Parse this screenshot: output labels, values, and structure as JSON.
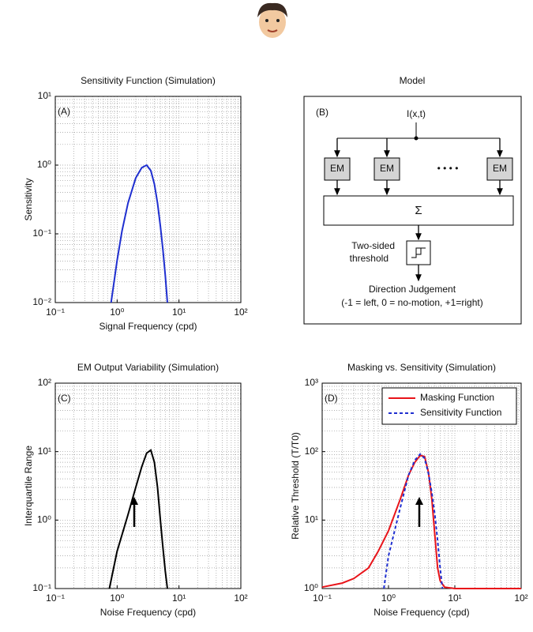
{
  "chart_data": [
    {
      "type": "line",
      "title": "Sensitivity Function (Simulation)",
      "panel_label": "(A)",
      "xlabel": "Signal Frequency (cpd)",
      "ylabel": "Sensitivity",
      "xlog": true,
      "ylog": true,
      "grid": true,
      "xlim": [
        0.1,
        100
      ],
      "ylim": [
        0.01,
        10
      ],
      "xticks": [
        {
          "value": 0.1,
          "label": "10⁻¹"
        },
        {
          "value": 1,
          "label": "10⁰"
        },
        {
          "value": 10,
          "label": "10¹"
        },
        {
          "value": 100,
          "label": "10²"
        }
      ],
      "yticks": [
        {
          "value": 0.01,
          "label": "10⁻²"
        },
        {
          "value": 0.1,
          "label": "10⁻¹"
        },
        {
          "value": 1,
          "label": "10⁰"
        },
        {
          "value": 10,
          "label": "10¹"
        }
      ],
      "series": [
        {
          "color": "#1f2fd0",
          "x": [
            0.8,
            1,
            1.2,
            1.5,
            2,
            2.5,
            3,
            3.5,
            4,
            4.5,
            5,
            5.5,
            6,
            6.5
          ],
          "values": [
            0.01,
            0.041,
            0.11,
            0.28,
            0.65,
            0.92,
            1.0,
            0.83,
            0.53,
            0.28,
            0.13,
            0.059,
            0.025,
            0.01
          ]
        }
      ]
    },
    {
      "type": "line",
      "title": "EM Output Variability (Simulation)",
      "panel_label": "(C)",
      "xlabel": "Noise Frequency (cpd)",
      "ylabel": "Interquartile Range",
      "xlog": true,
      "ylog": true,
      "grid": true,
      "xlim": [
        0.1,
        100
      ],
      "ylim": [
        0.1,
        100
      ],
      "xticks": [
        {
          "value": 0.1,
          "label": "10⁻¹"
        },
        {
          "value": 1,
          "label": "10⁰"
        },
        {
          "value": 10,
          "label": "10¹"
        },
        {
          "value": 100,
          "label": "10²"
        }
      ],
      "yticks": [
        {
          "value": 0.1,
          "label": "10⁻¹"
        },
        {
          "value": 1,
          "label": "10⁰"
        },
        {
          "value": 10,
          "label": "10¹"
        },
        {
          "value": 100,
          "label": "10²"
        }
      ],
      "series": [
        {
          "color": "#000000",
          "x": [
            0.75,
            1,
            1.5,
            2,
            2.5,
            3,
            3.5,
            4,
            4.5,
            5,
            5.5,
            6,
            6.5
          ],
          "values": [
            0.1,
            0.35,
            1.2,
            3,
            6,
            9.5,
            10.5,
            7,
            3,
            1,
            0.4,
            0.18,
            0.1
          ]
        }
      ]
    },
    {
      "type": "line",
      "title": "Masking vs. Sensitivity (Simulation)",
      "panel_label": "(D)",
      "xlabel": "Noise Frequency (cpd)",
      "ylabel": "Relative Threshold (T/T0)",
      "xlog": true,
      "ylog": true,
      "grid": true,
      "legend": "upper right",
      "xlim": [
        0.1,
        100
      ],
      "ylim": [
        1,
        1000
      ],
      "xticks": [
        {
          "value": 0.1,
          "label": "10⁻¹"
        },
        {
          "value": 1,
          "label": "10⁰"
        },
        {
          "value": 10,
          "label": "10¹"
        },
        {
          "value": 100,
          "label": "10²"
        }
      ],
      "yticks": [
        {
          "value": 1,
          "label": "10⁰"
        },
        {
          "value": 10,
          "label": "10¹"
        },
        {
          "value": 100,
          "label": "10²"
        },
        {
          "value": 1000,
          "label": "10³"
        }
      ],
      "series": [
        {
          "name": "Masking Function",
          "color": "#e8141a",
          "dash": false,
          "x": [
            0.1,
            0.2,
            0.3,
            0.5,
            0.7,
            1,
            1.5,
            2,
            2.5,
            3,
            3.5,
            4,
            4.5,
            5,
            5.5,
            6,
            7,
            10,
            100
          ],
          "values": [
            1.05,
            1.2,
            1.4,
            2,
            3.5,
            7,
            20,
            45,
            70,
            88,
            85,
            50,
            20,
            6,
            2,
            1.3,
            1.05,
            1,
            1
          ]
        },
        {
          "name": "Sensitivity Function",
          "color": "#1f2fd0",
          "dash": true,
          "x": [
            0.85,
            1,
            1.5,
            2,
            2.5,
            3,
            3.5,
            4,
            4.5,
            5,
            5.5,
            6,
            6.5
          ],
          "values": [
            1,
            3,
            15,
            45,
            75,
            92,
            80,
            48,
            25,
            12,
            5,
            2,
            1
          ]
        }
      ]
    }
  ],
  "diagram": {
    "title": "Model",
    "panel_label": "(B)",
    "input": "I(x,t)",
    "units": [
      "EM",
      "EM",
      "EM"
    ],
    "ellipsis": "• • • •",
    "sum": "Σ",
    "threshold": [
      "Two-sided",
      "threshold"
    ],
    "output": "Direction Judgement",
    "output_note": "(-1 = left, 0 = no-motion, +1=right)"
  }
}
